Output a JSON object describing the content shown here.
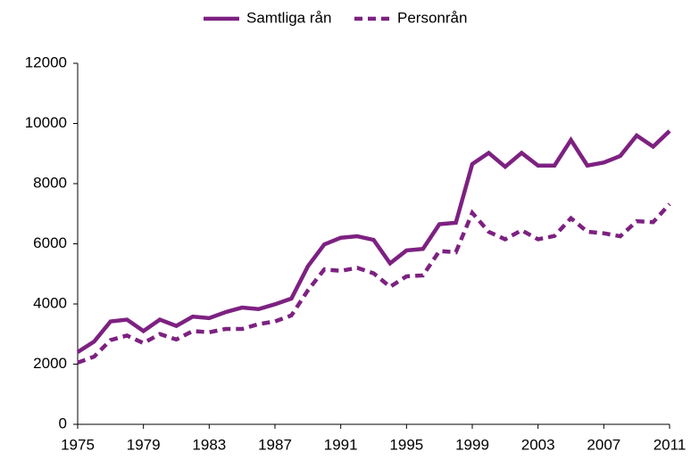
{
  "chart_data": {
    "type": "line",
    "x": [
      1975,
      1976,
      1977,
      1978,
      1979,
      1980,
      1981,
      1982,
      1983,
      1984,
      1985,
      1986,
      1987,
      1988,
      1989,
      1990,
      1991,
      1992,
      1993,
      1994,
      1995,
      1996,
      1997,
      1998,
      1999,
      2000,
      2001,
      2002,
      2003,
      2004,
      2005,
      2006,
      2007,
      2008,
      2009,
      2010,
      2011
    ],
    "series": [
      {
        "name": "Samtliga rån",
        "color": "#7d2181",
        "line_style": "solid",
        "values": [
          2400,
          2750,
          3420,
          3480,
          3100,
          3480,
          3270,
          3580,
          3530,
          3730,
          3880,
          3830,
          3990,
          4180,
          5250,
          5980,
          6200,
          6250,
          6130,
          5350,
          5780,
          5830,
          6650,
          6700,
          8650,
          9020,
          8560,
          9020,
          8600,
          8600,
          9450,
          8600,
          8700,
          8920,
          9600,
          9230,
          9750
        ]
      },
      {
        "name": "Personrån",
        "color": "#7d2181",
        "line_style": "dashed",
        "values": [
          2050,
          2250,
          2800,
          2950,
          2700,
          3000,
          2820,
          3100,
          3060,
          3170,
          3170,
          3330,
          3420,
          3620,
          4450,
          5150,
          5100,
          5200,
          5020,
          4570,
          4920,
          4950,
          5760,
          5720,
          7030,
          6400,
          6150,
          6450,
          6150,
          6260,
          6850,
          6400,
          6350,
          6250,
          6750,
          6720,
          7320
        ]
      }
    ],
    "xlim": [
      1975,
      2011
    ],
    "xticks": [
      1975,
      1979,
      1983,
      1987,
      1991,
      1995,
      1999,
      2003,
      2007,
      2011
    ],
    "ylim": [
      0,
      12000
    ],
    "yticks": [
      0,
      2000,
      4000,
      6000,
      8000,
      10000,
      12000
    ],
    "grid": false,
    "legend": "top"
  }
}
